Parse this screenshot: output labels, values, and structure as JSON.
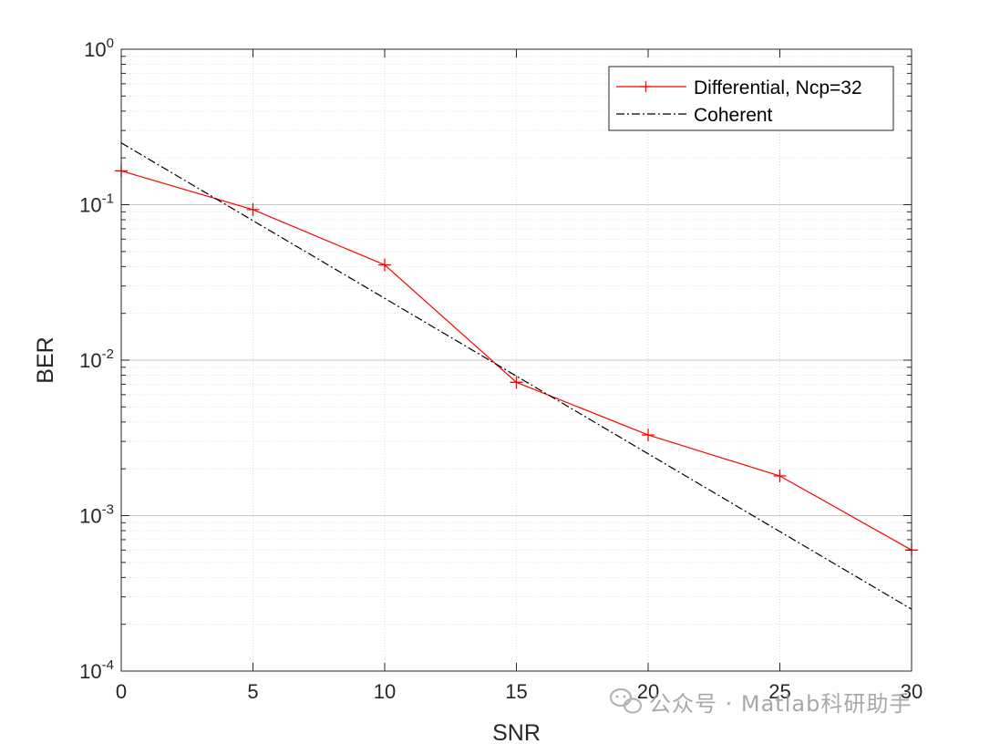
{
  "chart_data": {
    "type": "line",
    "title": "",
    "xlabel": "SNR",
    "ylabel": "BER",
    "xlim": [
      0,
      30
    ],
    "ylim": [
      0.0001,
      1
    ],
    "yscale": "log",
    "grid": true,
    "minor_grid": true,
    "legend_position": "top-right",
    "x_ticks": [
      "0",
      "5",
      "10",
      "15",
      "20",
      "25",
      "30"
    ],
    "y_ticks": [
      {
        "base": "10",
        "exp": "-4"
      },
      {
        "base": "10",
        "exp": "-3"
      },
      {
        "base": "10",
        "exp": "-2"
      },
      {
        "base": "10",
        "exp": "-1"
      },
      {
        "base": "10",
        "exp": "0"
      }
    ],
    "series": [
      {
        "name": "Differential, Ncp=32",
        "color": "#ff0000",
        "line_style": "solid",
        "marker": "plus",
        "x": [
          0,
          5,
          10,
          15,
          20,
          25,
          30
        ],
        "y": [
          0.165,
          0.093,
          0.041,
          0.0072,
          0.0033,
          0.0018,
          0.0006
        ]
      },
      {
        "name": "Coherent",
        "color": "#000000",
        "line_style": "dash-dot",
        "marker": "none",
        "x": [
          0,
          5,
          10,
          15,
          20,
          25,
          30
        ],
        "y": [
          0.25,
          0.079,
          0.025,
          0.0079,
          0.0025,
          0.00079,
          0.00025
        ]
      }
    ]
  },
  "watermark": {
    "icon": "wechat-icon",
    "text": "公众号 · Matlab科研助手"
  }
}
